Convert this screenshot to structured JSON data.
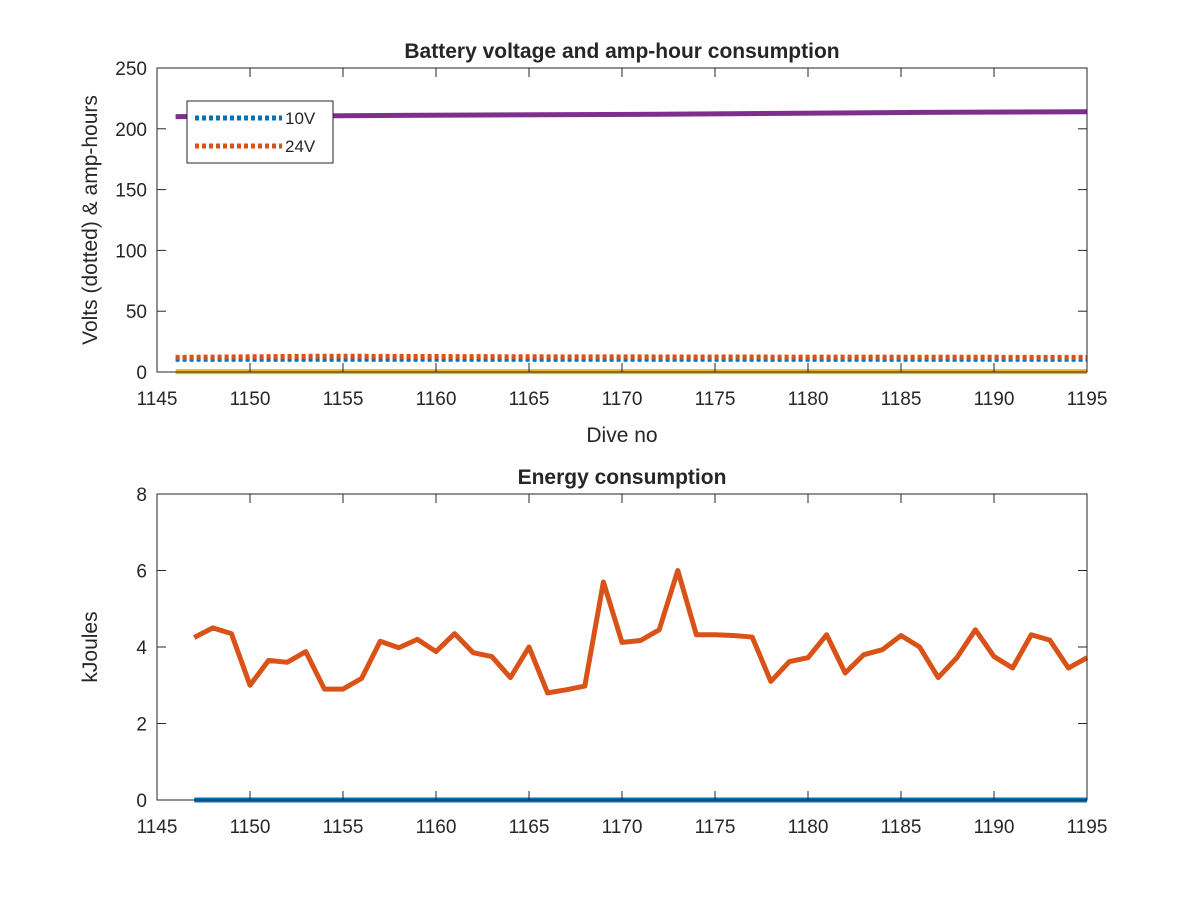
{
  "chart_data": [
    {
      "type": "line",
      "title": "Battery voltage and amp-hour consumption",
      "xlabel": "Dive no",
      "ylabel": "Volts (dotted) & amp-hours",
      "xlim": [
        1145,
        1195
      ],
      "ylim": [
        0,
        250
      ],
      "xticks": [
        1145,
        1150,
        1155,
        1160,
        1165,
        1170,
        1175,
        1180,
        1185,
        1190,
        1195
      ],
      "yticks": [
        0,
        50,
        100,
        150,
        200,
        250
      ],
      "grid": false,
      "legend": {
        "position": "top-left",
        "entries": [
          "10V",
          "24V"
        ]
      },
      "series": [
        {
          "name": "10V",
          "style": "dotted",
          "color": "#0072BD",
          "x": [
            1146,
            1195
          ],
          "values": [
            10.5,
            10.5
          ]
        },
        {
          "name": "24V",
          "style": "dotted",
          "color": "#D95319",
          "x": [
            1146,
            1154,
            1165,
            1195
          ],
          "values": [
            12,
            13,
            12.5,
            12
          ]
        },
        {
          "style": "solid",
          "color": "#7E2F8E",
          "x": [
            1146,
            1158,
            1172,
            1186,
            1195
          ],
          "values": [
            210,
            211,
            212,
            213.5,
            214
          ]
        },
        {
          "style": "solid",
          "color": "#EDB120",
          "x": [
            1146,
            1195
          ],
          "values": [
            0.3,
            0.3
          ]
        }
      ]
    },
    {
      "type": "line",
      "title": "Energy consumption",
      "xlabel": "",
      "ylabel": "kJoules",
      "xlim": [
        1145,
        1195
      ],
      "ylim": [
        0,
        8
      ],
      "xticks": [
        1145,
        1150,
        1155,
        1160,
        1165,
        1170,
        1175,
        1180,
        1185,
        1190,
        1195
      ],
      "yticks": [
        0,
        2,
        4,
        6,
        8
      ],
      "grid": false,
      "series": [
        {
          "style": "solid",
          "color": "#0072BD",
          "x": [
            1147,
            1195
          ],
          "values": [
            0,
            0
          ]
        },
        {
          "style": "solid",
          "color": "#D95319",
          "x": [
            1147,
            1148,
            1149,
            1150,
            1151,
            1152,
            1153,
            1154,
            1155,
            1156,
            1157,
            1158,
            1159,
            1160,
            1161,
            1162,
            1163,
            1164,
            1165,
            1166,
            1167,
            1168,
            1169,
            1170,
            1171,
            1172,
            1173,
            1174,
            1175,
            1176,
            1177,
            1178,
            1179,
            1180,
            1181,
            1182,
            1183,
            1184,
            1185,
            1186,
            1187,
            1188,
            1189,
            1190,
            1191,
            1192,
            1193,
            1194,
            1195
          ],
          "values": [
            4.25,
            4.5,
            4.35,
            3.0,
            3.65,
            3.6,
            3.88,
            2.9,
            2.9,
            3.18,
            4.15,
            3.98,
            4.2,
            3.88,
            4.35,
            3.85,
            3.75,
            3.2,
            4.0,
            2.8,
            2.88,
            2.98,
            5.7,
            4.12,
            4.17,
            4.45,
            6.0,
            4.32,
            4.32,
            4.3,
            4.26,
            3.1,
            3.62,
            3.72,
            4.32,
            3.32,
            3.8,
            3.93,
            4.3,
            4.0,
            3.2,
            3.72,
            4.45,
            3.75,
            3.45,
            4.32,
            4.18,
            3.45,
            3.72
          ]
        }
      ]
    }
  ]
}
